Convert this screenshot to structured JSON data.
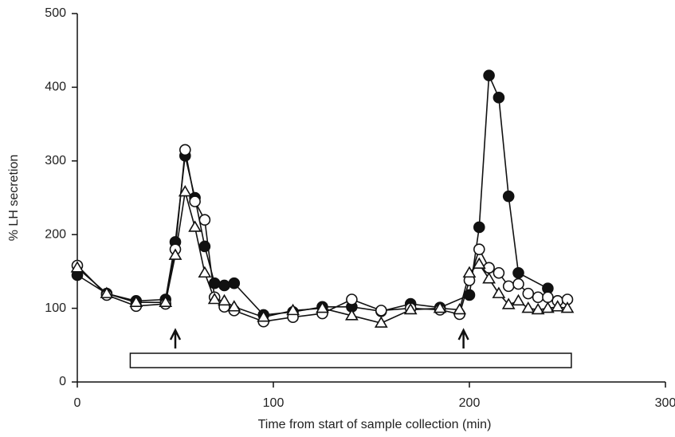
{
  "chart_data": {
    "type": "line",
    "xlabel": "Time from start of sample collection (min)",
    "ylabel": "% LH secretion",
    "xlim": [
      0,
      300
    ],
    "xticks": [
      0,
      100,
      200,
      300
    ],
    "ylim": [
      0,
      500
    ],
    "yticks": [
      0,
      100,
      200,
      300,
      400,
      500
    ],
    "arrows_x": [
      50,
      197
    ],
    "span_x": [
      27,
      252
    ],
    "series": [
      {
        "marker": "filled-circle",
        "color": "#111111",
        "x": [
          0,
          15,
          30,
          45,
          50,
          55,
          60,
          65,
          70,
          75,
          80,
          95,
          110,
          125,
          140,
          155,
          170,
          185,
          200,
          205,
          210,
          215,
          220,
          225,
          240
        ],
        "values": [
          145,
          120,
          110,
          112,
          190,
          307,
          250,
          184,
          134,
          131,
          134,
          91,
          95,
          102,
          102,
          96,
          106,
          101,
          118,
          210,
          416,
          386,
          252,
          148,
          127
        ]
      },
      {
        "marker": "open-circle",
        "color": "#111111",
        "x": [
          0,
          15,
          30,
          45,
          50,
          55,
          60,
          65,
          70,
          75,
          80,
          95,
          110,
          125,
          140,
          155,
          170,
          185,
          195,
          200,
          205,
          210,
          215,
          220,
          225,
          230,
          235,
          240,
          245,
          250
        ],
        "values": [
          158,
          118,
          103,
          106,
          180,
          315,
          245,
          220,
          115,
          102,
          97,
          82,
          88,
          93,
          112,
          97,
          100,
          98,
          92,
          138,
          180,
          155,
          148,
          130,
          133,
          120,
          115,
          115,
          110,
          112
        ]
      },
      {
        "marker": "open-triangle",
        "color": "#111111",
        "x": [
          0,
          15,
          30,
          45,
          50,
          55,
          60,
          65,
          70,
          75,
          80,
          95,
          110,
          125,
          140,
          155,
          170,
          185,
          195,
          200,
          205,
          210,
          215,
          220,
          225,
          230,
          235,
          240,
          245,
          250
        ],
        "values": [
          155,
          120,
          108,
          108,
          172,
          258,
          210,
          148,
          112,
          110,
          102,
          88,
          97,
          100,
          90,
          80,
          98,
          100,
          98,
          148,
          160,
          140,
          120,
          105,
          110,
          100,
          98,
          100,
          102,
          100
        ]
      }
    ]
  }
}
